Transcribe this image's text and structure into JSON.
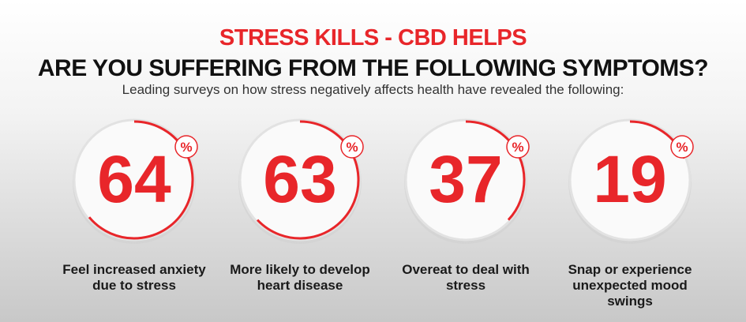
{
  "header": {
    "title": "STRESS KILLS - CBD HELPS",
    "subtitle": "ARE YOU SUFFERING FROM THE FOLLOWING SYMPTOMS?",
    "description": "Leading surveys on how stress negatively affects health have revealed the following:"
  },
  "stats": [
    {
      "value": 64,
      "unit": "%",
      "label": "Feel increased anxiety due to stress"
    },
    {
      "value": 63,
      "unit": "%",
      "label": "More likely to develop heart disease"
    },
    {
      "value": 37,
      "unit": "%",
      "label": "Overeat to deal with stress"
    },
    {
      "value": 19,
      "unit": "%",
      "label": "Snap or experience unexpected mood swings"
    }
  ]
}
